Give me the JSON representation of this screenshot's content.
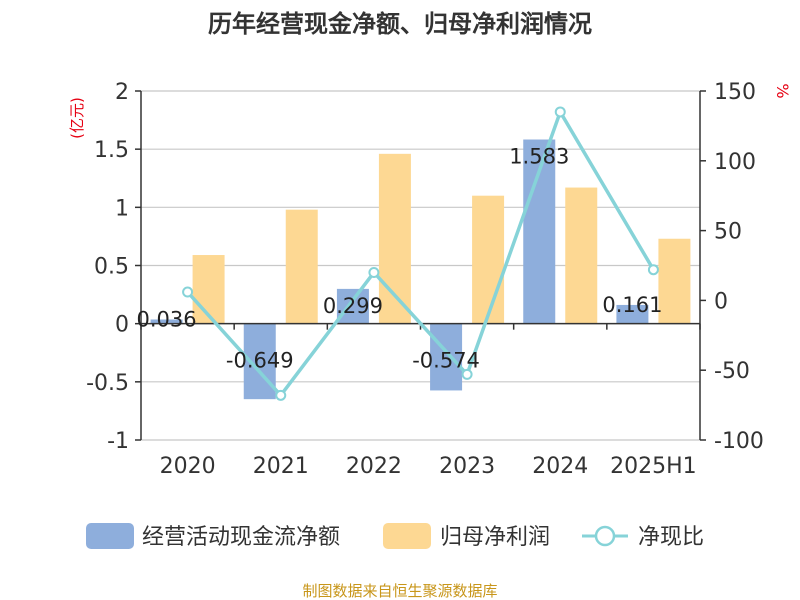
{
  "chart_data": {
    "type": "bar",
    "title": "历年经营现金净额、归母净利润情况",
    "categories": [
      "2020",
      "2021",
      "2022",
      "2023",
      "2024",
      "2025H1"
    ],
    "y_left": {
      "unit": "(亿元)",
      "ticks": [
        "2",
        "1.5",
        "1",
        "0.5",
        "0",
        "-0.5",
        "-1"
      ],
      "range": [
        -1,
        2
      ]
    },
    "y_right": {
      "unit": "%",
      "ticks": [
        "150",
        "100",
        "50",
        "0",
        "-50",
        "-100"
      ],
      "range": [
        -100,
        150
      ]
    },
    "series": [
      {
        "name": "经营活动现金流净额",
        "type": "bar",
        "axis": "left",
        "color": "#8eaedc",
        "values": [
          0.036,
          -0.649,
          0.299,
          -0.574,
          1.583,
          0.161
        ],
        "labels": [
          "0.036",
          "-0.649",
          "0.299",
          "-0.574",
          "1.583",
          "0.161"
        ]
      },
      {
        "name": "归母净利润",
        "type": "bar",
        "axis": "left",
        "color": "#fdd893",
        "values": [
          0.59,
          0.98,
          1.46,
          1.1,
          1.17,
          0.73
        ]
      },
      {
        "name": "净现比",
        "type": "line",
        "axis": "right",
        "color": "#86d3d8",
        "values": [
          6,
          -68,
          20,
          -53,
          135,
          22
        ]
      }
    ],
    "legend_position": "bottom",
    "grid": true
  },
  "source": "制图数据来自恒生聚源数据库"
}
